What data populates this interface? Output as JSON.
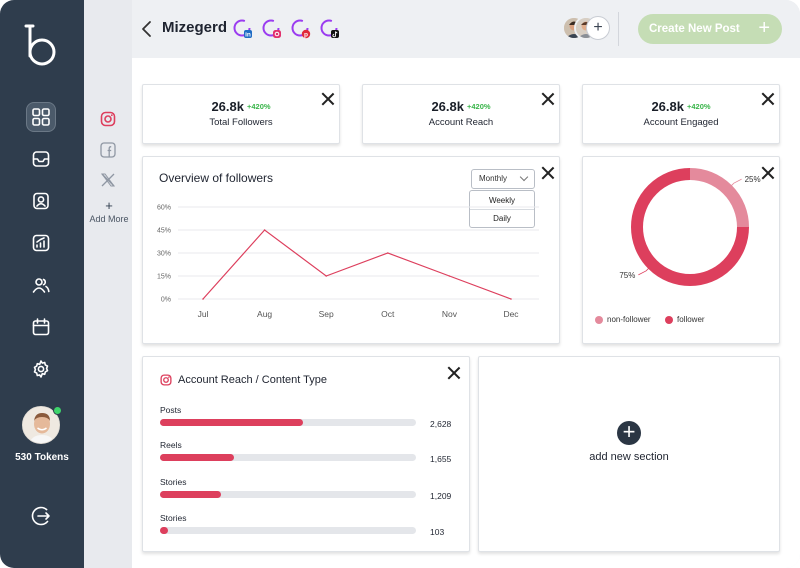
{
  "sidebar": {
    "items": [
      {
        "name": "dashboard",
        "active": true
      },
      {
        "name": "inbox",
        "active": false
      },
      {
        "name": "profile",
        "active": false
      },
      {
        "name": "analytics",
        "active": false
      },
      {
        "name": "team",
        "active": false
      },
      {
        "name": "calendar",
        "active": false
      },
      {
        "name": "settings",
        "active": false
      }
    ],
    "tokens_label": "530 Tokens",
    "user_status": "online"
  },
  "platforms": {
    "items": [
      "instagram-icon",
      "facebook-icon",
      "x-icon"
    ],
    "add_more_label": "Add More"
  },
  "header": {
    "workspace_title": "Mizegerd",
    "connected_networks": [
      "linkedin",
      "instagram",
      "pinterest",
      "tiktok"
    ],
    "create_post_label": "Create New Post"
  },
  "stats": [
    {
      "value": "26.8k",
      "change": "+420%",
      "label": "Total Followers"
    },
    {
      "value": "26.8k",
      "change": "+420%",
      "label": "Account Reach"
    },
    {
      "value": "26.8k",
      "change": "+420%",
      "label": "Account Engaged"
    }
  ],
  "followers_overview": {
    "title": "Overview of followers",
    "period_selected": "Monthly",
    "period_options": [
      "Weekly",
      "Daily"
    ]
  },
  "donut_card": {
    "legend": [
      {
        "label": "non-follower",
        "color": "#e48a9c"
      },
      {
        "label": "follower",
        "color": "#dd3f5d"
      }
    ]
  },
  "reach_by_type": {
    "title": "Account Reach / Content Type",
    "rows": [
      {
        "label": "Posts",
        "value": "2,628",
        "fraction": 0.56
      },
      {
        "label": "Reels",
        "value": "1,655",
        "fraction": 0.29
      },
      {
        "label": "Stories",
        "value": "1,209",
        "fraction": 0.24
      },
      {
        "label": "Stories",
        "value": "103",
        "fraction": 0.03
      }
    ]
  },
  "add_section": {
    "label": "add new section"
  },
  "colors": {
    "accent": "#dd3f5d",
    "accent_light": "#e48a9c",
    "sidebar": "#2f3d4d",
    "create_button": "#c5ddb5",
    "positive": "#39b54a"
  },
  "chart_data": [
    {
      "type": "line",
      "title": "Overview of followers",
      "categories": [
        "Jul",
        "Aug",
        "Sep",
        "Oct",
        "Nov",
        "Dec"
      ],
      "values": [
        0,
        45,
        15,
        30,
        15,
        0
      ],
      "yticks": [
        "0%",
        "15%",
        "30%",
        "45%",
        "60%"
      ],
      "ylim": [
        0,
        60
      ],
      "xlabel": "",
      "ylabel": "",
      "grid": true
    },
    {
      "type": "pie",
      "title": "",
      "labels": [
        "non-follower",
        "follower"
      ],
      "values": [
        25,
        75
      ],
      "data_labels": [
        "25%",
        "75%"
      ]
    }
  ]
}
